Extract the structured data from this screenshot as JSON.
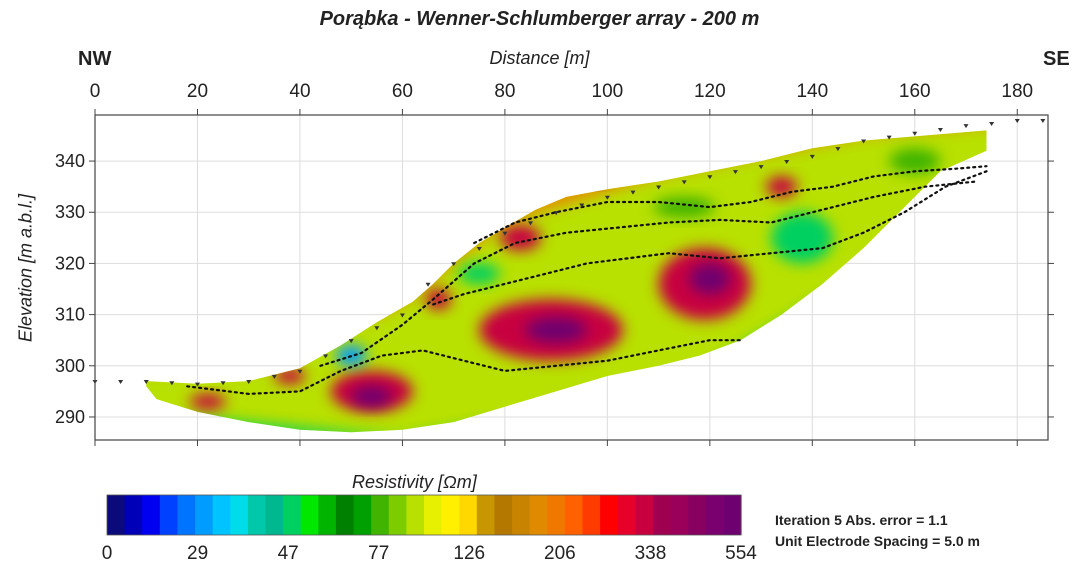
{
  "title": "Porąbka - Wenner-Schlumberger array - 200 m",
  "direction_left": "NW",
  "direction_right": "SE",
  "info": {
    "line1": "Iteration 5 Abs. error = 1.1",
    "line2": "Unit Electrode Spacing = 5.0 m"
  },
  "colors": {
    "background": "#ffffff",
    "axes": "#444444",
    "grid": "#dddddd",
    "electrode": "#333333",
    "boundary": "#111111"
  },
  "chart_data": {
    "type": "heatmap",
    "title": "Porąbka - Wenner-Schlumberger array - 200 m",
    "xlabel": "Distance [m]",
    "ylabel": "Elevation [m a.b.l.]",
    "xlim": [
      0,
      186
    ],
    "ylim": [
      285.5,
      349
    ],
    "x_ticks": [
      0,
      20,
      40,
      60,
      80,
      100,
      120,
      140,
      160,
      180
    ],
    "y_ticks": [
      290,
      300,
      310,
      320,
      330,
      340
    ],
    "grid": true,
    "topography": [
      [
        0,
        298
      ],
      [
        10,
        298
      ],
      [
        20,
        297.5
      ],
      [
        30,
        298
      ],
      [
        40,
        300
      ],
      [
        50,
        306
      ],
      [
        60,
        311
      ],
      [
        65,
        317
      ],
      [
        70,
        321
      ],
      [
        80,
        327
      ],
      [
        90,
        331
      ],
      [
        100,
        334
      ],
      [
        110,
        336
      ],
      [
        120,
        338
      ],
      [
        130,
        340
      ],
      [
        140,
        342
      ],
      [
        150,
        345
      ],
      [
        160,
        346.5
      ],
      [
        170,
        348
      ],
      [
        176,
        348.5
      ],
      [
        180,
        349
      ],
      [
        186,
        349
      ]
    ],
    "section_outline": [
      [
        10,
        297
      ],
      [
        20,
        296.5
      ],
      [
        30,
        297
      ],
      [
        40,
        299.5
      ],
      [
        48,
        304
      ],
      [
        55,
        308.5
      ],
      [
        62,
        312.5
      ],
      [
        66,
        316
      ],
      [
        70,
        320
      ],
      [
        75,
        324
      ],
      [
        80,
        327
      ],
      [
        86,
        330.5
      ],
      [
        92,
        333
      ],
      [
        100,
        334.5
      ],
      [
        110,
        336
      ],
      [
        120,
        338
      ],
      [
        130,
        340
      ],
      [
        140,
        342.5
      ],
      [
        150,
        344
      ],
      [
        162,
        345
      ],
      [
        174,
        346
      ],
      [
        174,
        342
      ],
      [
        165,
        338
      ],
      [
        158,
        331
      ],
      [
        150,
        323
      ],
      [
        142,
        316
      ],
      [
        134,
        310
      ],
      [
        126,
        305
      ],
      [
        118,
        302
      ],
      [
        110,
        300
      ],
      [
        100,
        298
      ],
      [
        90,
        295
      ],
      [
        80,
        292
      ],
      [
        70,
        289
      ],
      [
        60,
        287.5
      ],
      [
        50,
        287
      ],
      [
        40,
        287.5
      ],
      [
        30,
        289
      ],
      [
        20,
        291
      ],
      [
        12,
        293.5
      ],
      [
        10,
        296
      ]
    ],
    "anomalies": [
      {
        "x": 89,
        "y": 307,
        "rx": 14,
        "ry": 6,
        "value": 338
      },
      {
        "x": 90,
        "y": 307,
        "rx": 6,
        "ry": 2.5,
        "value": 554
      },
      {
        "x": 119,
        "y": 316,
        "rx": 9,
        "ry": 7,
        "value": 338
      },
      {
        "x": 120,
        "y": 317,
        "rx": 4,
        "ry": 3,
        "value": 554
      },
      {
        "x": 54,
        "y": 295,
        "rx": 8,
        "ry": 4,
        "value": 338
      },
      {
        "x": 54,
        "y": 294,
        "rx": 4,
        "ry": 2,
        "value": 554
      },
      {
        "x": 83,
        "y": 325,
        "rx": 4,
        "ry": 2.5,
        "value": 338
      },
      {
        "x": 67,
        "y": 313,
        "rx": 2.5,
        "ry": 2,
        "value": 338
      },
      {
        "x": 38,
        "y": 298,
        "rx": 3,
        "ry": 1.5,
        "value": 338
      },
      {
        "x": 22,
        "y": 293,
        "rx": 3.5,
        "ry": 1.5,
        "value": 338
      },
      {
        "x": 134,
        "y": 335,
        "rx": 3,
        "ry": 2,
        "value": 338
      },
      {
        "x": 138,
        "y": 325,
        "rx": 6,
        "ry": 5,
        "value": 47
      },
      {
        "x": 75,
        "y": 318,
        "rx": 4,
        "ry": 2,
        "value": 47
      },
      {
        "x": 115,
        "y": 331,
        "rx": 6,
        "ry": 2,
        "value": 77
      },
      {
        "x": 50,
        "y": 302,
        "rx": 3,
        "ry": 2,
        "value": 29
      },
      {
        "x": 95,
        "y": 336,
        "rx": 4,
        "ry": 1,
        "value": 554
      },
      {
        "x": 160,
        "y": 340,
        "rx": 5,
        "ry": 2.5,
        "value": 77
      }
    ],
    "boundaries": [
      [
        [
          18,
          296
        ],
        [
          30,
          294.5
        ],
        [
          40,
          295
        ],
        [
          48,
          299
        ],
        [
          56,
          302
        ],
        [
          64,
          303
        ],
        [
          72,
          301
        ],
        [
          80,
          299
        ],
        [
          90,
          300
        ],
        [
          100,
          301
        ],
        [
          110,
          303
        ],
        [
          120,
          305
        ],
        [
          126,
          305
        ]
      ],
      [
        [
          44,
          300
        ],
        [
          52,
          302.5
        ],
        [
          60,
          308
        ],
        [
          66,
          313
        ],
        [
          74,
          320
        ],
        [
          82,
          324
        ],
        [
          92,
          326
        ],
        [
          102,
          327
        ],
        [
          112,
          328
        ],
        [
          122,
          328.5
        ],
        [
          132,
          328
        ],
        [
          142,
          330.5
        ],
        [
          152,
          333
        ],
        [
          162,
          335
        ],
        [
          172,
          336
        ]
      ],
      [
        [
          66,
          312
        ],
        [
          72,
          314
        ],
        [
          80,
          316
        ],
        [
          88,
          318
        ],
        [
          96,
          320
        ],
        [
          104,
          321
        ],
        [
          112,
          322
        ],
        [
          122,
          321
        ],
        [
          132,
          322
        ],
        [
          142,
          323
        ],
        [
          150,
          326
        ],
        [
          158,
          330
        ],
        [
          166,
          335
        ],
        [
          174,
          338
        ]
      ],
      [
        [
          74,
          324
        ],
        [
          82,
          328
        ],
        [
          90,
          330
        ],
        [
          100,
          332
        ],
        [
          110,
          332
        ],
        [
          120,
          331
        ],
        [
          128,
          332
        ],
        [
          136,
          334
        ],
        [
          144,
          335
        ],
        [
          152,
          337
        ],
        [
          160,
          338
        ],
        [
          168,
          338.5
        ],
        [
          174,
          339
        ]
      ]
    ],
    "colorbar": {
      "label": "Resistivity [Ωm]",
      "tick_labels": [
        "0",
        "29",
        "47",
        "77",
        "126",
        "206",
        "338",
        "554"
      ],
      "colors": [
        "#0a0a7a",
        "#0000b8",
        "#0000f0",
        "#0040ff",
        "#0074ff",
        "#009cff",
        "#00c4ff",
        "#00dcea",
        "#00c8a8",
        "#00b890",
        "#00d060",
        "#00e800",
        "#00b400",
        "#008000",
        "#00a000",
        "#40b400",
        "#7ccc00",
        "#b8e000",
        "#e6f000",
        "#fff000",
        "#ffd800",
        "#c89600",
        "#b47800",
        "#c88400",
        "#e08a00",
        "#f07800",
        "#ff6000",
        "#ff3c00",
        "#ff0000",
        "#e6002a",
        "#c80040",
        "#a00050",
        "#9a005a",
        "#880060",
        "#7a0070",
        "#6e0070"
      ]
    }
  }
}
